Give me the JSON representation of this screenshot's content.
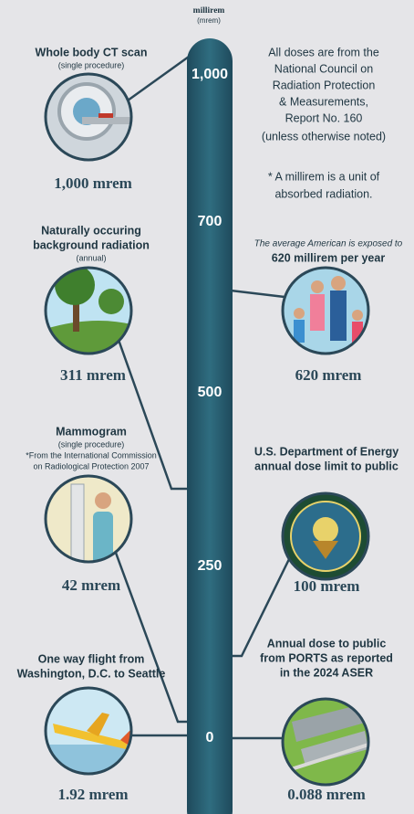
{
  "header": {
    "unit": "millirem",
    "unit_abbr": "(mrem)"
  },
  "scale": [
    "1,000",
    "700",
    "500",
    "250",
    "0"
  ],
  "source_note": [
    "All doses are from the",
    "National Council on",
    "Radiation Protection",
    "& Measurements,",
    "Report No. 160",
    "(unless otherwise noted)"
  ],
  "definition_note": [
    "* A millirem is a unit of",
    "absorbed radiation."
  ],
  "items": [
    {
      "title": [
        "Whole body CT scan"
      ],
      "subtitle": "(single procedure)",
      "dose": "1,000 mrem"
    },
    {
      "title": [
        "Naturally occuring",
        "background radiation"
      ],
      "subtitle": "(annual)",
      "dose": "311 mrem"
    },
    {
      "title": [
        "Mammogram"
      ],
      "subtitle": "(single procedure)",
      "note": [
        "*From the International Commission",
        "on Radiological Protection 2007"
      ],
      "dose": "42 mrem"
    },
    {
      "title": [
        "One way flight from",
        "Washington, D.C. to Seattle"
      ],
      "dose": "1.92 mrem"
    },
    {
      "intro": "The average American is exposed to",
      "title": [
        "620 millirem per year"
      ],
      "dose": "620 mrem"
    },
    {
      "title": [
        "U.S. Department of Energy",
        "annual dose limit to public"
      ],
      "dose": "100 mrem"
    },
    {
      "title": [
        "Annual dose to public",
        "from PORTS as reported",
        "in the 2024 ASER"
      ],
      "dose": "0.088 mrem"
    }
  ]
}
